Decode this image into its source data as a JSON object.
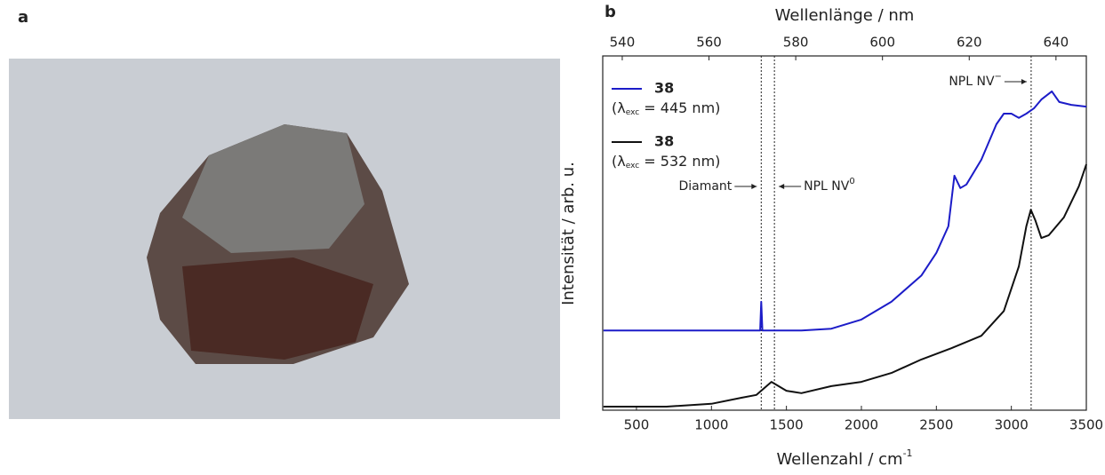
{
  "panels": {
    "a": "a",
    "b": "b"
  },
  "chart_data": {
    "type": "line",
    "title": "Wellenlänge / nm",
    "x_label": {
      "text": "Wellenzahl / cm",
      "sup": "-1"
    },
    "y_label": "Intensität / arb. u.",
    "xlim": [
      275,
      3500
    ],
    "xticks": [
      500,
      1000,
      1500,
      2000,
      2500,
      3000,
      3500
    ],
    "x2lim": [
      535.5,
      647
    ],
    "x2ticks": [
      540,
      560,
      580,
      600,
      620,
      640
    ],
    "ylim": [
      0,
      100
    ],
    "series": [
      {
        "name": "38",
        "excitation": {
          "symbol": "(λ",
          "sub": "exc",
          "text": " = 445 nm)"
        },
        "color": "#1c1cc8",
        "x": [
          280,
          1300,
          1325,
          1332,
          1340,
          1600,
          1800,
          2000,
          2200,
          2400,
          2500,
          2580,
          2620,
          2660,
          2700,
          2800,
          2900,
          2950,
          3000,
          3050,
          3100,
          3150,
          3200,
          3270,
          3320,
          3400,
          3500
        ],
        "values": [
          22.5,
          22.5,
          22.5,
          30.6,
          22.5,
          22.5,
          23,
          25.6,
          30.6,
          38,
          44.4,
          51.9,
          66.2,
          62.7,
          63.7,
          70.7,
          80.7,
          83.7,
          83.7,
          82.5,
          83.7,
          85.2,
          87.7,
          90,
          87,
          86.2,
          85.7
        ]
      },
      {
        "name": "38",
        "excitation": {
          "symbol": "(λ",
          "sub": "exc",
          "text": " = 532 nm)"
        },
        "color": "#111111",
        "x": [
          280,
          700,
          1000,
          1200,
          1300,
          1400,
          1500,
          1600,
          1800,
          2000,
          2200,
          2400,
          2600,
          2800,
          2950,
          3050,
          3100,
          3130,
          3160,
          3200,
          3250,
          3350,
          3450,
          3500
        ],
        "values": [
          1,
          1,
          1.8,
          3.5,
          4.3,
          8,
          5.5,
          4.8,
          6.8,
          8,
          10.5,
          14.3,
          17.5,
          21,
          28,
          40.6,
          51.9,
          56.6,
          53.6,
          48.6,
          49.4,
          54.4,
          63.2,
          69.4
        ]
      }
    ],
    "annotations": [
      {
        "x": 1332,
        "text": "Diamant",
        "side": "left"
      },
      {
        "x": 1420,
        "text": "NPL NV",
        "sup": "0",
        "side": "right"
      },
      {
        "x": 3132,
        "text": "NPL NV",
        "sup": "−",
        "side": "left"
      }
    ]
  }
}
